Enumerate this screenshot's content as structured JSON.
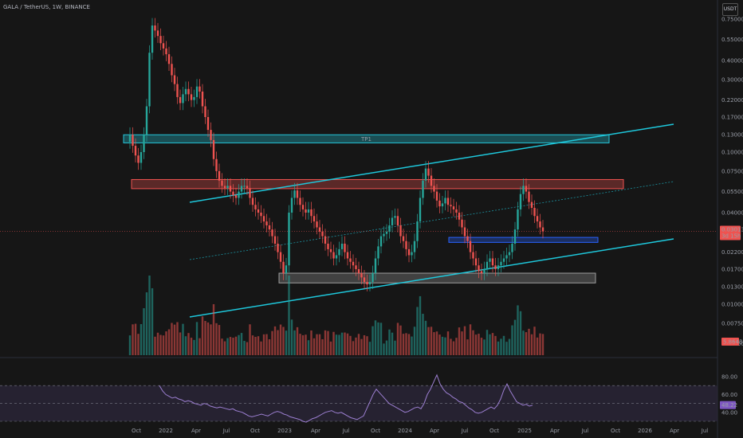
{
  "header": {
    "symbol": "GALA / TetherUS, 1W, BINANCE"
  },
  "currency_button": "USDT",
  "colors": {
    "up": "#26a69a",
    "down": "#ef5350",
    "channel": "#1ec8dc",
    "rsi": "#9c7fd1",
    "rsi_bg": "#2a2638"
  },
  "chart_data": [
    {
      "type": "candlestick",
      "scale": "log",
      "price_axis_ticks": [
        "0.75000",
        "0.55000",
        "0.40000",
        "0.30000",
        "0.22000",
        "0.17000",
        "0.13000",
        "0.10000",
        "0.07500",
        "0.05500",
        "0.04000",
        "0.02200",
        "0.01700",
        "0.01300",
        "0.01000",
        "0.00750",
        "0.00550"
      ],
      "time_axis_ticks": [
        "Oct",
        "2022",
        "Apr",
        "Jul",
        "Oct",
        "2023",
        "Apr",
        "Jul",
        "Oct",
        "2024",
        "Apr",
        "Jul",
        "Oct",
        "2025",
        "Apr",
        "Jul",
        "Oct",
        "2026",
        "Apr",
        "Jul"
      ],
      "last_price_label": "0.03013",
      "countdown_label": "3d 15h",
      "volume_label": "5.864B",
      "zones": [
        {
          "label": "TP1",
          "color": "#26c6da",
          "low": 0.115,
          "high": 0.13
        },
        {
          "label": "",
          "color": "#ef5350",
          "low": 0.0575,
          "high": 0.066
        },
        {
          "label": "",
          "color": "#2962ff",
          "low": 0.0255,
          "high": 0.0275
        },
        {
          "label": "",
          "color": "#9e9e9e",
          "low": 0.0138,
          "high": 0.016
        }
      ],
      "weekly_closes": [
        0.13,
        0.11,
        0.095,
        0.085,
        0.1,
        0.13,
        0.2,
        0.45,
        0.68,
        0.63,
        0.58,
        0.52,
        0.48,
        0.44,
        0.38,
        0.32,
        0.28,
        0.23,
        0.21,
        0.24,
        0.26,
        0.24,
        0.22,
        0.23,
        0.27,
        0.25,
        0.2,
        0.17,
        0.14,
        0.12,
        0.09,
        0.075,
        0.065,
        0.06,
        0.058,
        0.06,
        0.055,
        0.052,
        0.05,
        0.055,
        0.06,
        0.06,
        0.058,
        0.05,
        0.045,
        0.042,
        0.04,
        0.038,
        0.035,
        0.033,
        0.031,
        0.028,
        0.025,
        0.022,
        0.019,
        0.016,
        0.018,
        0.04,
        0.05,
        0.056,
        0.05,
        0.045,
        0.042,
        0.04,
        0.042,
        0.038,
        0.035,
        0.032,
        0.03,
        0.028,
        0.025,
        0.023,
        0.022,
        0.02,
        0.021,
        0.023,
        0.025,
        0.022,
        0.02,
        0.019,
        0.018,
        0.017,
        0.016,
        0.015,
        0.014,
        0.0135,
        0.014,
        0.016,
        0.02,
        0.024,
        0.028,
        0.029,
        0.03,
        0.033,
        0.037,
        0.038,
        0.033,
        0.028,
        0.026,
        0.023,
        0.021,
        0.022,
        0.026,
        0.035,
        0.05,
        0.065,
        0.078,
        0.07,
        0.06,
        0.055,
        0.048,
        0.044,
        0.046,
        0.05,
        0.045,
        0.044,
        0.042,
        0.04,
        0.036,
        0.032,
        0.028,
        0.026,
        0.022,
        0.02,
        0.018,
        0.0165,
        0.016,
        0.017,
        0.019,
        0.02,
        0.018,
        0.017,
        0.018,
        0.019,
        0.02,
        0.021,
        0.022,
        0.025,
        0.031,
        0.042,
        0.053,
        0.06,
        0.055,
        0.047,
        0.043,
        0.038,
        0.035,
        0.032,
        0.03013
      ]
    },
    {
      "type": "line",
      "name": "RSI",
      "y_ticks": [
        "80.00",
        "60.00",
        "40.00"
      ],
      "current_value_label": "48.22",
      "values": [
        70,
        64,
        60,
        58,
        56,
        57,
        55,
        54,
        52,
        53,
        52,
        50,
        49,
        48,
        50,
        49,
        47,
        46,
        45,
        46,
        45,
        44,
        43,
        44,
        42,
        41,
        40,
        38,
        36,
        35,
        36,
        37,
        38,
        37,
        36,
        38,
        40,
        41,
        40,
        38,
        37,
        35,
        34,
        33,
        32,
        30,
        29,
        31,
        33,
        34,
        36,
        38,
        40,
        41,
        42,
        40,
        39,
        40,
        38,
        36,
        34,
        33,
        32,
        34,
        36,
        44,
        52,
        60,
        66,
        62,
        58,
        54,
        50,
        48,
        46,
        44,
        42,
        40,
        41,
        43,
        45,
        46,
        44,
        50,
        60,
        66,
        74,
        82,
        72,
        66,
        62,
        60,
        57,
        55,
        52,
        51,
        48,
        45,
        43,
        40,
        39,
        40,
        42,
        44,
        46,
        44,
        48,
        55,
        65,
        72,
        64,
        58,
        52,
        50,
        48,
        49,
        47,
        48
      ]
    }
  ]
}
